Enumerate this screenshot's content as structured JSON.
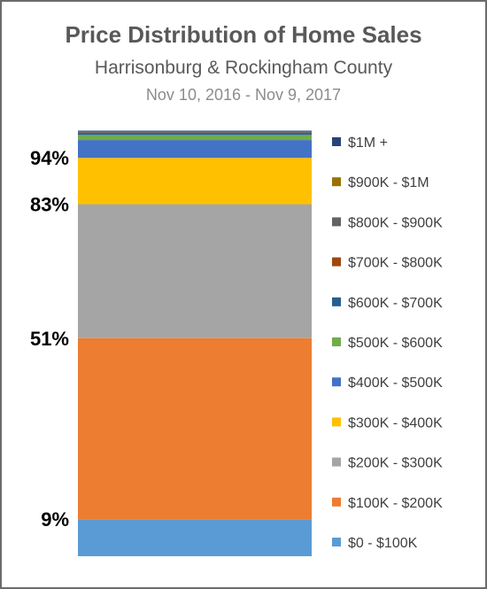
{
  "chart_data": {
    "type": "bar",
    "stacked": true,
    "title": "Price Distribution of Home Sales",
    "subtitle": "Harrisonburg & Rockingham County",
    "date_range": "Nov 10, 2016 - Nov 9, 2017",
    "ylim": [
      0,
      100
    ],
    "grid": false,
    "legend_position": "right",
    "series": [
      {
        "name": "$0 - $100K",
        "value": 8.7,
        "color": "#5b9bd5"
      },
      {
        "name": "$100K - $200K",
        "value": 42.6,
        "color": "#ed7d31"
      },
      {
        "name": "$200K - $300K",
        "value": 31.5,
        "color": "#a5a5a5"
      },
      {
        "name": "$300K - $400K",
        "value": 10.9,
        "color": "#ffc000"
      },
      {
        "name": "$400K - $500K",
        "value": 4.2,
        "color": "#4472c4"
      },
      {
        "name": "$500K - $600K",
        "value": 1.2,
        "color": "#70ad47"
      },
      {
        "name": "$600K - $700K",
        "value": 0.4,
        "color": "#255e91"
      },
      {
        "name": "$700K - $800K",
        "value": 0.1,
        "color": "#9e480e"
      },
      {
        "name": "$800K - $900K",
        "value": 0.3,
        "color": "#636363"
      },
      {
        "name": "$900K - $1M",
        "value": 0.1,
        "color": "#997300"
      },
      {
        "name": "$1M +",
        "value": 0.1,
        "color": "#264478"
      }
    ],
    "cumulative_labels": [
      {
        "text": "9%",
        "value": 8.7
      },
      {
        "text": "51%",
        "value": 51.3
      },
      {
        "text": "83%",
        "value": 82.8
      },
      {
        "text": "94%",
        "value": 93.7
      }
    ]
  }
}
